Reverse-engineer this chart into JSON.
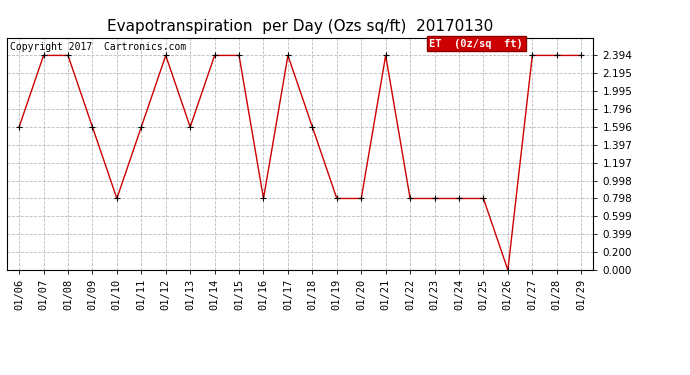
{
  "title": "Evapotranspiration  per Day (Ozs sq/ft)  20170130",
  "copyright": "Copyright 2017  Cartronics.com",
  "legend_label": "ET  (0z/sq  ft)",
  "x_labels": [
    "01/06",
    "01/07",
    "01/08",
    "01/09",
    "01/10",
    "01/11",
    "01/12",
    "01/13",
    "01/14",
    "01/15",
    "01/16",
    "01/17",
    "01/18",
    "01/19",
    "01/20",
    "01/21",
    "01/22",
    "01/23",
    "01/24",
    "01/25",
    "01/26",
    "01/27",
    "01/28",
    "01/29"
  ],
  "y_values": [
    1.596,
    2.394,
    2.394,
    1.596,
    0.798,
    1.596,
    2.394,
    1.596,
    2.394,
    2.394,
    0.798,
    2.394,
    1.596,
    0.798,
    0.798,
    2.394,
    0.798,
    0.798,
    0.798,
    0.798,
    0.0,
    2.394,
    2.394,
    2.394
  ],
  "ylim": [
    0.0,
    2.594
  ],
  "yticks": [
    0.0,
    0.2,
    0.399,
    0.599,
    0.798,
    0.998,
    1.197,
    1.397,
    1.596,
    1.796,
    1.995,
    2.195,
    2.394
  ],
  "line_color": "#cc0000",
  "marker_color": "#000000",
  "background_color": "#ffffff",
  "grid_color": "#bbbbbb",
  "legend_bg": "#cc0000",
  "legend_text_color": "#ffffff",
  "title_fontsize": 11,
  "tick_fontsize": 7.5,
  "copyright_fontsize": 7
}
